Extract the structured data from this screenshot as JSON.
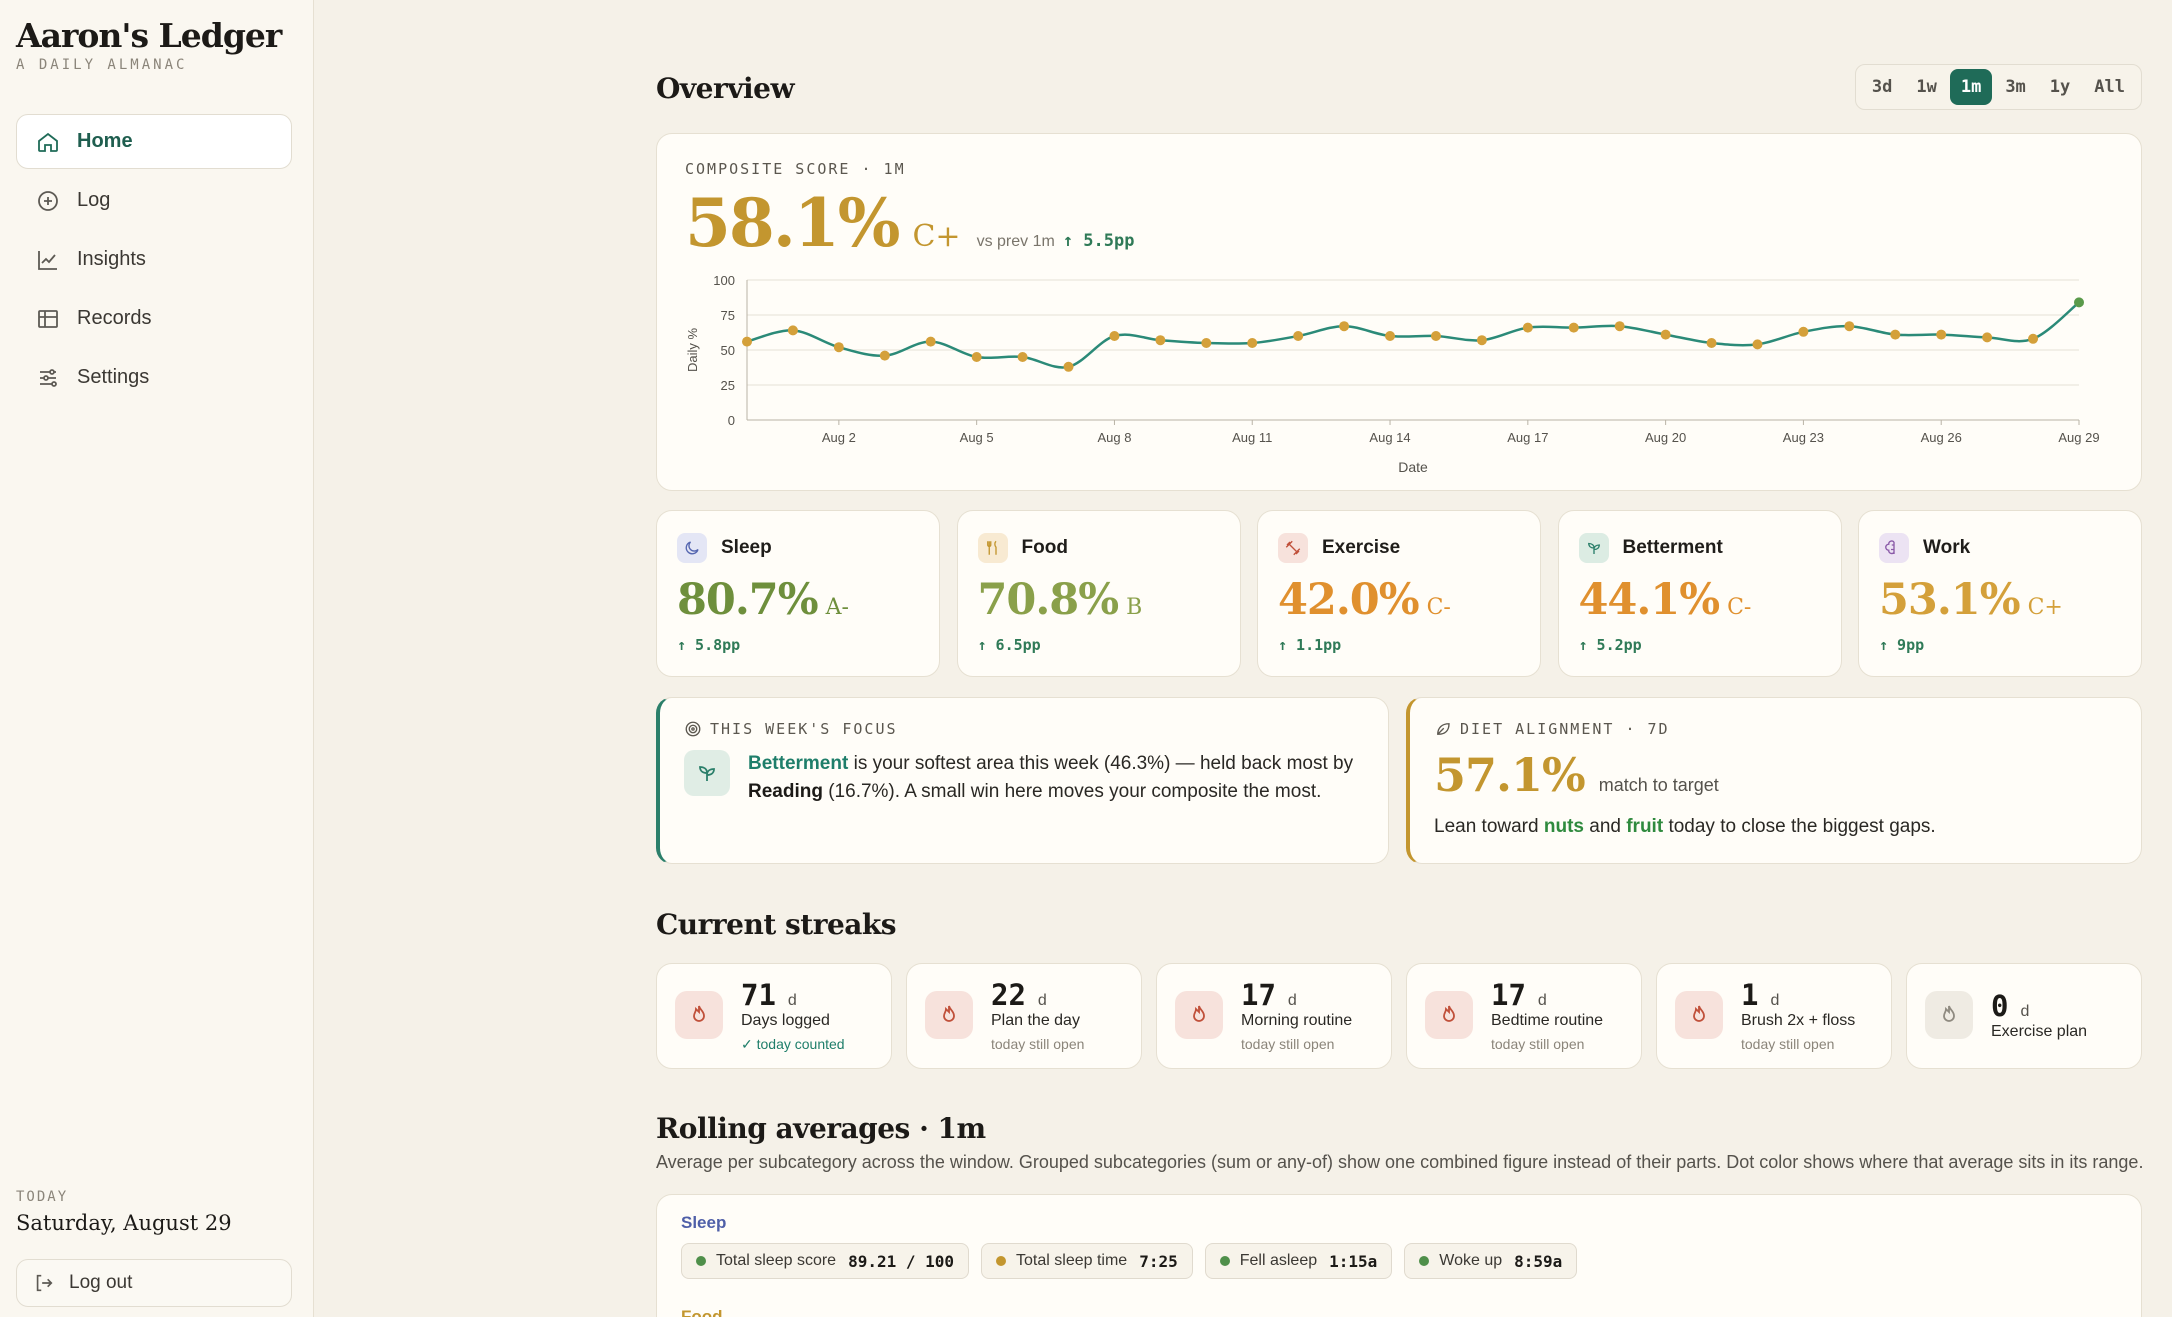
{
  "brand": {
    "title": "Aaron's Ledger",
    "subtitle": "A DAILY ALMANAC"
  },
  "nav": [
    {
      "label": "Home",
      "icon": "home-icon",
      "active": true
    },
    {
      "label": "Log",
      "icon": "plus-circle-icon"
    },
    {
      "label": "Insights",
      "icon": "line-chart-icon"
    },
    {
      "label": "Records",
      "icon": "table-icon"
    },
    {
      "label": "Settings",
      "icon": "sliders-icon"
    }
  ],
  "today": {
    "label": "TODAY",
    "date": "Saturday, August 29"
  },
  "logout_label": "Log out",
  "overview": {
    "title": "Overview",
    "ranges": [
      "3d",
      "1w",
      "1m",
      "3m",
      "1y",
      "All"
    ],
    "active_range": "1m"
  },
  "composite": {
    "label": "COMPOSITE SCORE · 1M",
    "score": "58.1%",
    "grade": "C+",
    "vs": "vs prev 1m",
    "delta": "↑ 5.5pp"
  },
  "chart_data": {
    "type": "line",
    "xlabel": "Date",
    "ylabel": "Daily %",
    "ylim": [
      0,
      100
    ],
    "yticks": [
      0,
      25,
      50,
      75,
      100
    ],
    "xtick_labels": [
      "Aug 2",
      "Aug 5",
      "Aug 8",
      "Aug 11",
      "Aug 14",
      "Aug 17",
      "Aug 20",
      "Aug 23",
      "Aug 26",
      "Aug 29"
    ],
    "x": [
      "Jul 31",
      "Aug 1",
      "Aug 2",
      "Aug 3",
      "Aug 4",
      "Aug 5",
      "Aug 6",
      "Aug 7",
      "Aug 8",
      "Aug 9",
      "Aug 10",
      "Aug 11",
      "Aug 12",
      "Aug 13",
      "Aug 14",
      "Aug 15",
      "Aug 16",
      "Aug 17",
      "Aug 18",
      "Aug 19",
      "Aug 20",
      "Aug 21",
      "Aug 22",
      "Aug 23",
      "Aug 24",
      "Aug 25",
      "Aug 26",
      "Aug 27",
      "Aug 28",
      "Aug 29"
    ],
    "values": [
      56,
      64,
      52,
      46,
      56,
      45,
      45,
      38,
      60,
      57,
      55,
      55,
      60,
      67,
      60,
      60,
      57,
      66,
      66,
      67,
      61,
      55,
      54,
      63,
      67,
      61,
      61,
      59,
      58,
      84
    ],
    "grid": true,
    "line_color": "#2b8a78",
    "point_color": "#d4a03a",
    "last_point_color": "#5a9a4a"
  },
  "categories": [
    {
      "name": "Sleep",
      "score": "80.7%",
      "grade": "A-",
      "delta": "↑ 5.8pp",
      "color": "#6e8f3c",
      "icon": "moon-icon",
      "icon_bg": "#e4e6f5",
      "icon_fg": "#5566b0"
    },
    {
      "name": "Food",
      "score": "70.8%",
      "grade": "B",
      "delta": "↑ 6.5pp",
      "color": "#8aa04a",
      "icon": "utensils-icon",
      "icon_bg": "#f8ead2",
      "icon_fg": "#c3962f"
    },
    {
      "name": "Exercise",
      "score": "42.0%",
      "grade": "C-",
      "delta": "↑ 1.1pp",
      "color": "#e0902e",
      "icon": "dumbbell-icon",
      "icon_bg": "#f7e2dc",
      "icon_fg": "#c0503a"
    },
    {
      "name": "Betterment",
      "score": "44.1%",
      "grade": "C-",
      "delta": "↑ 5.2pp",
      "color": "#e0902e",
      "icon": "sprout-icon",
      "icon_bg": "#dcece3",
      "icon_fg": "#2b7f6a"
    },
    {
      "name": "Work",
      "score": "53.1%",
      "grade": "C+",
      "delta": "↑ 9pp",
      "color": "#d4a03a",
      "icon": "brain-icon",
      "icon_bg": "#ece3f3",
      "icon_fg": "#8a5aa8"
    }
  ],
  "focus": {
    "label": "THIS WEEK'S FOCUS",
    "area": "Betterment",
    "text1": " is your softest area this week (46.3%) — held back most by ",
    "sub": "Reading",
    "text2": " (16.7%). A small win here moves your composite the most."
  },
  "diet": {
    "label": "DIET ALIGNMENT · 7D",
    "score": "57.1%",
    "sub": "match to target",
    "text1": "Lean toward ",
    "item1": "nuts",
    "text2": " and ",
    "item2": "fruit",
    "text3": " today to close the biggest gaps."
  },
  "streaks": {
    "title": "Current streaks",
    "items": [
      {
        "num": "71",
        "unit": "d",
        "name": "Days logged",
        "status": "✓ today counted",
        "ok": true,
        "active": true
      },
      {
        "num": "22",
        "unit": "d",
        "name": "Plan the day",
        "status": "today still open",
        "active": true
      },
      {
        "num": "17",
        "unit": "d",
        "name": "Morning routine",
        "status": "today still open",
        "active": true
      },
      {
        "num": "17",
        "unit": "d",
        "name": "Bedtime routine",
        "status": "today still open",
        "active": true
      },
      {
        "num": "1",
        "unit": "d",
        "name": "Brush 2x + floss",
        "status": "today still open",
        "active": true
      },
      {
        "num": "0",
        "unit": "d",
        "name": "Exercise plan",
        "status": "",
        "active": false
      }
    ]
  },
  "rolling": {
    "title": "Rolling averages · 1m",
    "desc": "Average per subcategory across the window. Grouped subcategories (sum or any-of) show one combined figure instead of their parts. Dot color shows where that average sits in its range.",
    "sections": [
      {
        "name": "Sleep",
        "items": [
          {
            "label": "Total sleep score",
            "value": "89.21 / 100",
            "dot": "#4f8f4a"
          },
          {
            "label": "Total sleep time",
            "value": "7:25",
            "dot": "#c3962f"
          },
          {
            "label": "Fell asleep",
            "value": "1:15a",
            "dot": "#4f8f4a"
          },
          {
            "label": "Woke up",
            "value": "8:59a",
            "dot": "#4f8f4a"
          }
        ]
      },
      {
        "name": "Food",
        "items": []
      }
    ]
  }
}
